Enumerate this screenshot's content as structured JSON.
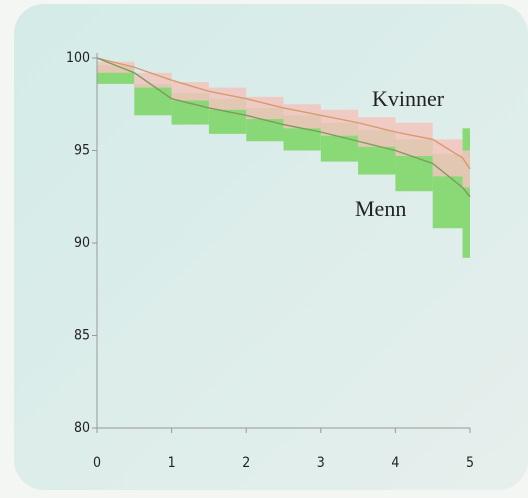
{
  "chart_data": {
    "type": "line",
    "x": [
      0,
      0.5,
      1,
      1.5,
      2,
      2.5,
      3,
      3.5,
      4,
      4.5,
      4.9,
      5
    ],
    "series": [
      {
        "name": "Kvinner",
        "color": "#d99a6c",
        "band_color": "#f2c4bd",
        "values": [
          100,
          99.5,
          98.8,
          98.2,
          97.8,
          97.3,
          96.9,
          96.5,
          96.0,
          95.6,
          94.6,
          94.0
        ],
        "lower": [
          100,
          99.2,
          98.4,
          97.7,
          97.2,
          96.7,
          96.2,
          95.8,
          95.2,
          94.7,
          93.6,
          93.0
        ],
        "upper": [
          100,
          99.8,
          99.2,
          98.7,
          98.4,
          97.9,
          97.5,
          97.2,
          96.8,
          96.5,
          95.6,
          95.0
        ]
      },
      {
        "name": "Menn",
        "color": "#7f9a5a",
        "band_color": "#7fd66a",
        "values": [
          100,
          99.2,
          97.8,
          97.3,
          96.9,
          96.4,
          96.0,
          95.5,
          95.0,
          94.3,
          93.0,
          92.5
        ],
        "lower": [
          100,
          98.6,
          96.9,
          96.4,
          95.9,
          95.5,
          95.0,
          94.4,
          93.7,
          92.8,
          90.8,
          89.2
        ],
        "upper": [
          100,
          99.6,
          98.6,
          98.1,
          97.8,
          97.3,
          96.9,
          96.5,
          96.1,
          95.6,
          94.8,
          96.2
        ]
      }
    ],
    "xlim": [
      0,
      5
    ],
    "xticks": [
      0,
      1,
      2,
      3,
      4,
      5
    ],
    "ylim": [
      80,
      100
    ],
    "yticks": [
      80,
      85,
      90,
      95,
      100
    ]
  }
}
